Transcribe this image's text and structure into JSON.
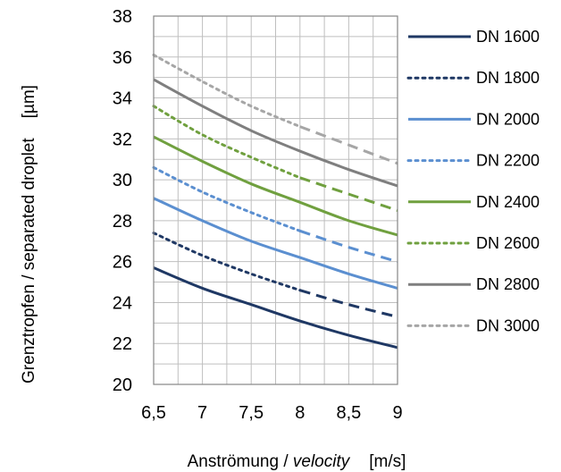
{
  "chart_data": {
    "type": "line",
    "xlabel": "Anströmung / ",
    "xlabel_italic": "velocity",
    "xunit": "[m/s]",
    "ylabel": "Grenztropfen / separated droplet",
    "yunit": "[µm]",
    "xlim": [
      6.5,
      9
    ],
    "ylim": [
      20,
      38
    ],
    "x_ticks": [
      "6,5",
      "7",
      "7,5",
      "8",
      "8,5",
      "9"
    ],
    "y_ticks": [
      "20",
      "22",
      "24",
      "26",
      "28",
      "30",
      "32",
      "34",
      "36",
      "38"
    ],
    "x_ticks_values": [
      6.5,
      7,
      7.5,
      8,
      8.5,
      9
    ],
    "y_ticks_values": [
      20,
      22,
      24,
      26,
      28,
      30,
      32,
      34,
      36,
      38
    ],
    "grid": true,
    "legend_position": "right",
    "note": "",
    "series": [
      {
        "name": "DN 1600",
        "color": "#1f3864",
        "style": "solid",
        "x": [
          6.5,
          7,
          7.5,
          8,
          8.5,
          9
        ],
        "y": [
          25.7,
          24.7,
          23.9,
          23.1,
          22.4,
          21.8
        ],
        "dashed_from_x": 9
      },
      {
        "name": "DN 1800",
        "color": "#1f3864",
        "style": "dotted",
        "x": [
          6.5,
          7,
          7.5,
          8,
          8.5,
          9
        ],
        "y": [
          27.4,
          26.3,
          25.4,
          24.6,
          23.9,
          23.3
        ],
        "dashed_from_x": 8
      },
      {
        "name": "DN 2000",
        "color": "#5b8fd0",
        "style": "solid",
        "x": [
          6.5,
          7,
          7.5,
          8,
          8.5,
          9
        ],
        "y": [
          29.1,
          28.0,
          27.0,
          26.2,
          25.4,
          24.7
        ],
        "dashed_from_x": 9
      },
      {
        "name": "DN 2200",
        "color": "#5b8fd0",
        "style": "dotted",
        "x": [
          6.5,
          7,
          7.5,
          8,
          8.5,
          9
        ],
        "y": [
          30.6,
          29.4,
          28.4,
          27.5,
          26.7,
          26.0
        ],
        "dashed_from_x": 8
      },
      {
        "name": "DN 2400",
        "color": "#70a03f",
        "style": "solid",
        "x": [
          6.5,
          7,
          7.5,
          8,
          8.5,
          9
        ],
        "y": [
          32.1,
          30.9,
          29.8,
          28.9,
          28.0,
          27.3
        ],
        "dashed_from_x": 9
      },
      {
        "name": "DN 2600",
        "color": "#70a03f",
        "style": "dotted",
        "x": [
          6.5,
          7,
          7.5,
          8,
          8.5,
          9
        ],
        "y": [
          33.6,
          32.2,
          31.1,
          30.1,
          29.3,
          28.5
        ],
        "dashed_from_x": 8
      },
      {
        "name": "DN 2800",
        "color": "#7f7f7f",
        "style": "solid",
        "x": [
          6.5,
          7,
          7.5,
          8,
          8.5,
          9
        ],
        "y": [
          34.9,
          33.6,
          32.4,
          31.4,
          30.5,
          29.7
        ],
        "dashed_from_x": 9
      },
      {
        "name": "DN 3000",
        "color": "#a6a6a6",
        "style": "dotted",
        "x": [
          6.5,
          7,
          7.5,
          8,
          8.5,
          9
        ],
        "y": [
          36.1,
          34.8,
          33.6,
          32.6,
          31.7,
          30.8
        ],
        "dashed_from_x": 8
      }
    ]
  }
}
